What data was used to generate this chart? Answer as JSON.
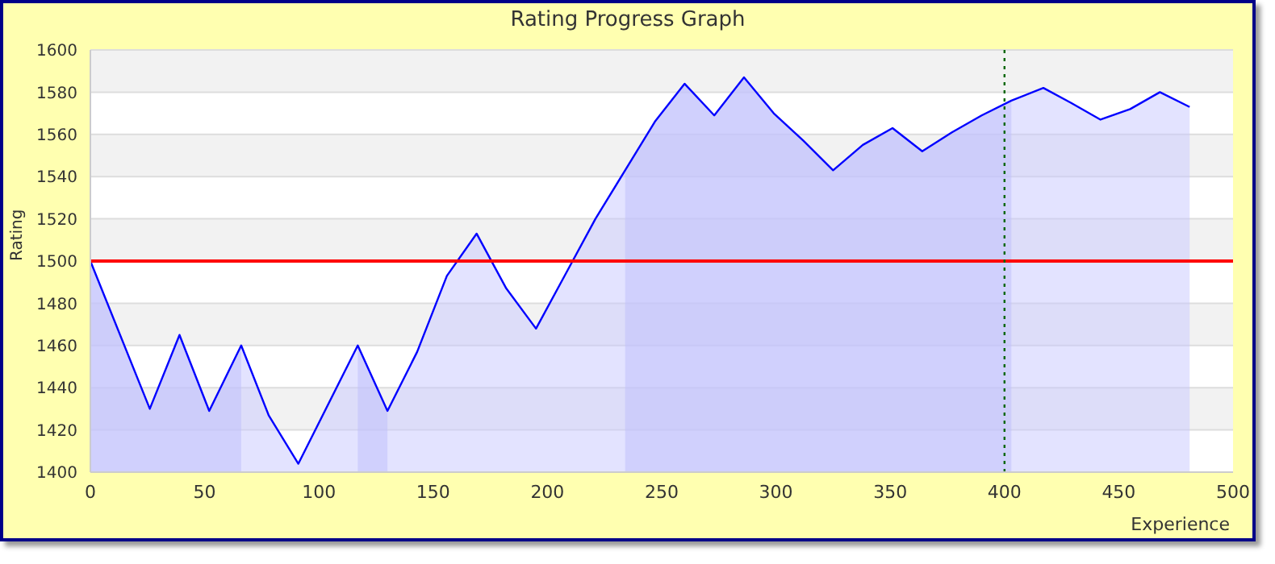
{
  "chart_data": {
    "type": "area",
    "title": "Rating Progress Graph",
    "xlabel": "Experience",
    "ylabel": "Rating",
    "x": [
      0,
      26,
      39,
      52,
      66,
      78,
      91,
      117,
      130,
      143,
      156,
      169,
      182,
      195,
      208,
      221,
      234,
      247,
      260,
      273,
      286,
      299,
      312,
      325,
      338,
      351,
      364,
      377,
      390,
      403,
      417,
      429,
      442,
      455,
      468,
      481
    ],
    "series": [
      {
        "color": "#0000ff",
        "values": [
          1500,
          1430,
          1465,
          1429,
          1460,
          1427,
          1404,
          1460,
          1429,
          1457,
          1493,
          1513,
          1487,
          1468,
          1494,
          1520,
          1543,
          1566,
          1584,
          1569,
          1587,
          1570,
          1557,
          1543,
          1555,
          1563,
          1552,
          1561,
          1569,
          1576,
          1582,
          1575,
          1567,
          1572,
          1580,
          1573
        ]
      },
      {
        "color": "#b8b8f8",
        "line_style": "none",
        "values": [
          1500,
          1430,
          1465,
          1429,
          1460,
          null,
          null,
          1460,
          1429,
          null,
          null,
          null,
          null,
          null,
          null,
          null,
          1543,
          1566,
          1584,
          1569,
          1587,
          1570,
          1557,
          1543,
          1555,
          1563,
          1552,
          1561,
          1569,
          1576,
          null,
          null,
          null,
          null,
          null,
          null
        ]
      }
    ],
    "xlim": [
      0,
      500
    ],
    "xticks": [
      0,
      50,
      100,
      150,
      200,
      250,
      300,
      350,
      400,
      450,
      500
    ],
    "ylim": [
      1400,
      1600
    ],
    "yticks": [
      1400,
      1420,
      1440,
      1460,
      1480,
      1500,
      1520,
      1540,
      1560,
      1580,
      1600
    ],
    "grid": "y",
    "ref_lines": [
      {
        "axis": "y",
        "value": 1500,
        "color": "#ff0000",
        "line_style": "solid"
      },
      {
        "axis": "x",
        "value": 400,
        "color": "#006600",
        "line_style": "dotted"
      }
    ]
  }
}
